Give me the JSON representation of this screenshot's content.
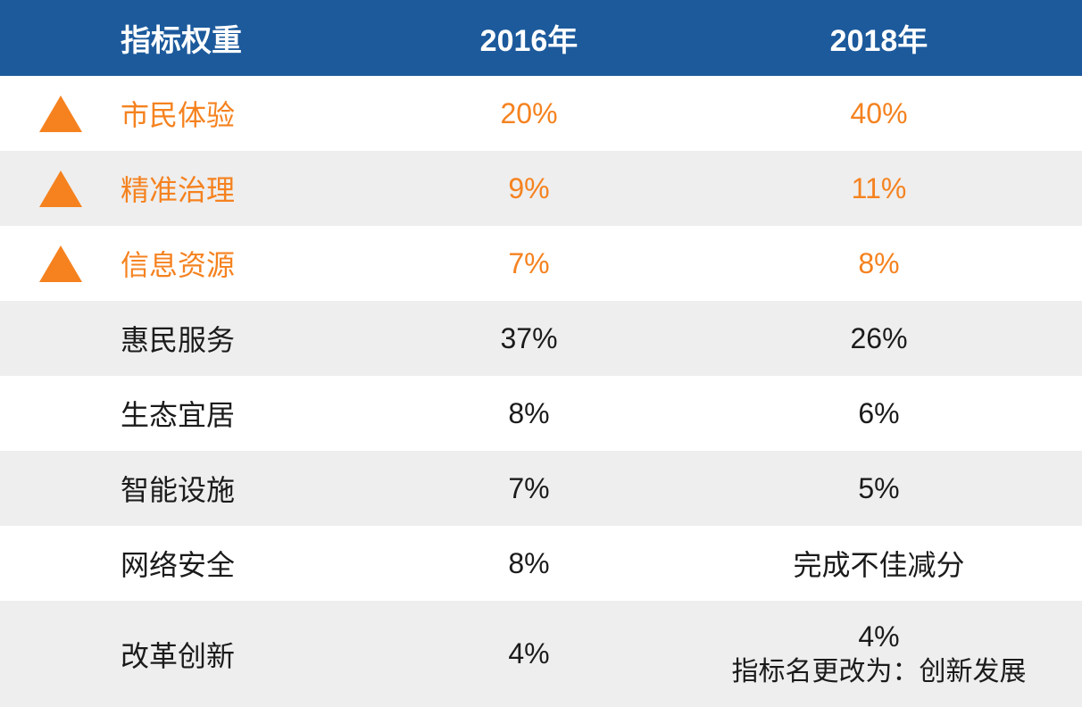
{
  "chart_data": {
    "type": "table",
    "title": "指标权重",
    "columns": [
      "指标权重",
      "2016年",
      "2018年"
    ],
    "rows": [
      {
        "indicator": "市民体验",
        "y2016": "20%",
        "y2018": "40%",
        "highlighted": true,
        "icon": "triangle-up"
      },
      {
        "indicator": "精准治理",
        "y2016": "9%",
        "y2018": "11%",
        "highlighted": true,
        "icon": "triangle-up"
      },
      {
        "indicator": "信息资源",
        "y2016": "7%",
        "y2018": "8%",
        "highlighted": true,
        "icon": "triangle-up"
      },
      {
        "indicator": "惠民服务",
        "y2016": "37%",
        "y2018": "26%",
        "highlighted": false
      },
      {
        "indicator": "生态宜居",
        "y2016": "8%",
        "y2018": "6%",
        "highlighted": false
      },
      {
        "indicator": "智能设施",
        "y2016": "7%",
        "y2018": "5%",
        "highlighted": false
      },
      {
        "indicator": "网络安全",
        "y2016": "8%",
        "y2018": "完成不佳减分",
        "highlighted": false
      },
      {
        "indicator": "改革创新",
        "y2016": "4%",
        "y2018": "4%",
        "y2018_note": "指标名更改为：创新发展",
        "highlighted": false
      }
    ],
    "layout": {
      "striped_rows": true,
      "header_position": "top"
    }
  },
  "header": {
    "indicator_label": "指标权重",
    "col_2016_label": "2016年",
    "col_2018_label": "2018年"
  },
  "rows": [
    {
      "label": "市民体验",
      "v2016": "20%",
      "v2018": "40%"
    },
    {
      "label": "精准治理",
      "v2016": "9%",
      "v2018": "11%"
    },
    {
      "label": "信息资源",
      "v2016": "7%",
      "v2018": "8%"
    },
    {
      "label": "惠民服务",
      "v2016": "37%",
      "v2018": "26%"
    },
    {
      "label": "生态宜居",
      "v2016": "8%",
      "v2018": "6%"
    },
    {
      "label": "智能设施",
      "v2016": "7%",
      "v2018": "5%"
    },
    {
      "label": "网络安全",
      "v2016": "8%",
      "v2018": "完成不佳减分"
    },
    {
      "label": "改革创新",
      "v2016": "4%",
      "v2018": "4%",
      "v2018_note": "指标名更改为：创新发展"
    }
  ],
  "icons": {
    "triangle_up": "orange upward triangle indicating increased weight"
  },
  "colors": {
    "header_bg": "#1C5A9C",
    "header_text": "#FFFFFF",
    "accent_orange": "#F5821F",
    "stripe_gray": "#EEEEEE",
    "row_white": "#FFFFFF",
    "text_dark": "#1B1B1B"
  }
}
